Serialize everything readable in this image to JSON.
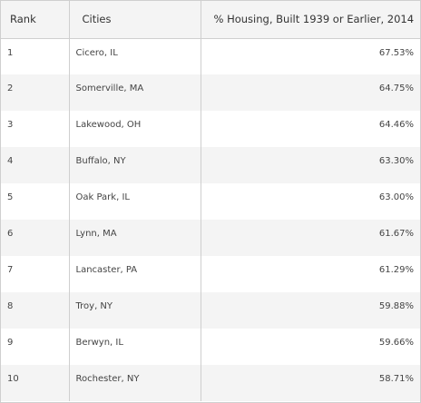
{
  "table": {
    "headers": {
      "rank": "Rank",
      "city": "Cities",
      "percent": "% Housing, Built 1939 or Earlier, 2014"
    },
    "rows": [
      {
        "rank": "1",
        "city": "Cicero, IL",
        "percent": "67.53%"
      },
      {
        "rank": "2",
        "city": "Somerville, MA",
        "percent": "64.75%"
      },
      {
        "rank": "3",
        "city": "Lakewood, OH",
        "percent": "64.46%"
      },
      {
        "rank": "4",
        "city": "Buffalo, NY",
        "percent": "63.30%"
      },
      {
        "rank": "5",
        "city": "Oak Park, IL",
        "percent": "63.00%"
      },
      {
        "rank": "6",
        "city": "Lynn, MA",
        "percent": "61.67%"
      },
      {
        "rank": "7",
        "city": "Lancaster, PA",
        "percent": "61.29%"
      },
      {
        "rank": "8",
        "city": "Troy, NY",
        "percent": "59.88%"
      },
      {
        "rank": "9",
        "city": "Berwyn, IL",
        "percent": "59.66%"
      },
      {
        "rank": "10",
        "city": "Rochester, NY",
        "percent": "58.71%"
      }
    ]
  }
}
